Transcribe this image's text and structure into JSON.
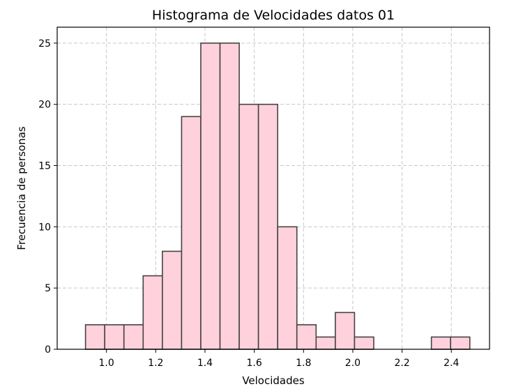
{
  "chart_data": {
    "type": "bar",
    "title": "Histograma de Velocidades datos 01",
    "xlabel": "Velocidades",
    "ylabel": "Frecuencia de personas",
    "bin_edges": [
      0.915,
      0.993,
      1.071,
      1.149,
      1.227,
      1.305,
      1.383,
      1.461,
      1.539,
      1.617,
      1.695,
      1.773,
      1.851,
      1.929,
      2.007,
      2.085,
      2.163,
      2.241,
      2.319,
      2.397,
      2.475
    ],
    "values": [
      2,
      2,
      2,
      6,
      8,
      19,
      25,
      25,
      20,
      20,
      10,
      2,
      1,
      3,
      1,
      0,
      0,
      0,
      1,
      1
    ],
    "xlim": [
      0.8,
      2.555
    ],
    "ylim": [
      0,
      26.3
    ],
    "xticks": [
      1.0,
      1.2,
      1.4,
      1.6,
      1.8,
      2.0,
      2.2,
      2.4
    ],
    "xtick_labels": [
      "1.0",
      "1.2",
      "1.4",
      "1.6",
      "1.8",
      "2.0",
      "2.2",
      "2.4"
    ],
    "yticks": [
      0,
      5,
      10,
      15,
      20,
      25
    ],
    "ytick_labels": [
      "0",
      "5",
      "10",
      "15",
      "20",
      "25"
    ],
    "grid": true,
    "bar_color": "#ffd1dc",
    "edge_color": "#444444"
  }
}
